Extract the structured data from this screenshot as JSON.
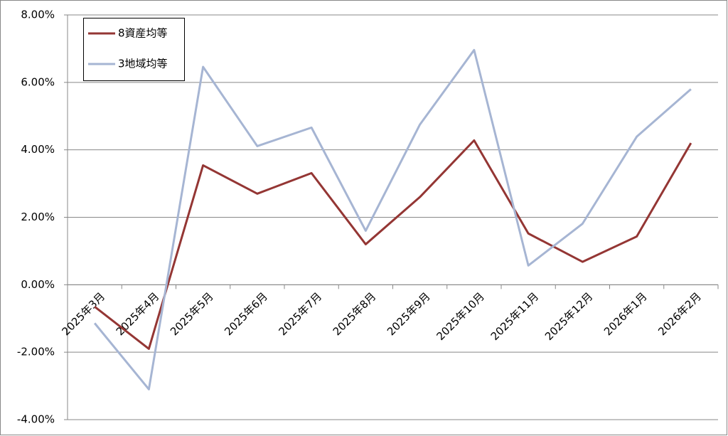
{
  "chart_data": {
    "type": "line",
    "categories": [
      "2025年3月",
      "2025年4月",
      "2025年5月",
      "2025年6月",
      "2025年7月",
      "2025年8月",
      "2025年9月",
      "2025年10月",
      "2025年11月",
      "2025年12月",
      "2026年1月",
      "2026年2月"
    ],
    "series": [
      {
        "name": "8資産均等",
        "color": "#943634",
        "values": [
          -0.65,
          -1.9,
          3.54,
          2.7,
          3.31,
          1.2,
          2.6,
          4.28,
          1.52,
          0.68,
          1.43,
          4.2
        ]
      },
      {
        "name": "3地域均等",
        "color": "#a6b5d3",
        "values": [
          -1.14,
          -3.1,
          6.46,
          4.11,
          4.66,
          1.6,
          4.75,
          6.96,
          0.57,
          1.81,
          4.39,
          5.8
        ]
      }
    ],
    "ylim": [
      -4,
      8
    ],
    "yticks": [
      {
        "value": -4,
        "label": "-4.00%"
      },
      {
        "value": -2,
        "label": "-2.00%"
      },
      {
        "value": 0,
        "label": "0.00%"
      },
      {
        "value": 2,
        "label": "2.00%"
      },
      {
        "value": 4,
        "label": "4.00%"
      },
      {
        "value": 6,
        "label": "6.00%"
      },
      {
        "value": 8,
        "label": "8.00%"
      }
    ],
    "grid": true,
    "legend": "top-left"
  }
}
